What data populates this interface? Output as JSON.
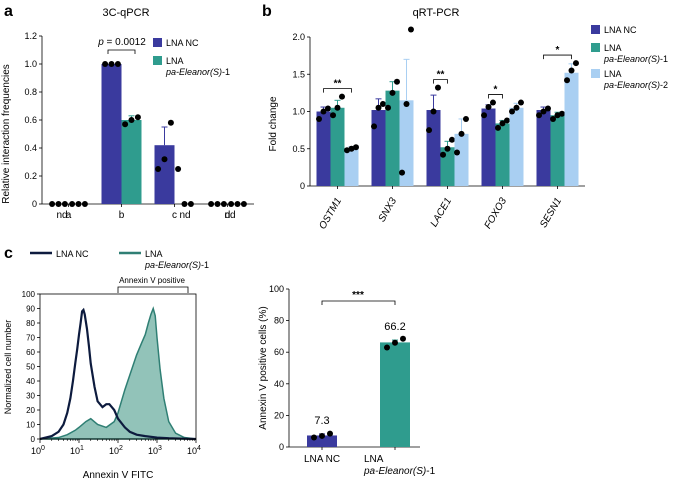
{
  "colors": {
    "nc": "#3a3a9e",
    "s1": "#2f9c8e",
    "s2": "#a9cff2",
    "flow_nc_line": "#0d1b3e",
    "flow_s1_fill": "#7fb8ad",
    "flow_s1_line": "#2f7f74"
  },
  "panels": {
    "a": {
      "letter": "a"
    },
    "b": {
      "letter": "b"
    },
    "c": {
      "letter": "c"
    }
  },
  "chart_data": [
    {
      "id": "a",
      "type": "bar",
      "title": "3C-qPCR",
      "ylabel": "Relative interaction frequencies",
      "xlabel": "",
      "ylim": [
        0,
        1.2
      ],
      "yticks": [
        "0",
        "0.2",
        "0.4",
        "0.6",
        "0.8",
        "1.0",
        "1.2"
      ],
      "categories": [
        "a",
        "b",
        "c",
        "d"
      ],
      "legend": [
        "LNA NC",
        "LNA pa-Eleanor(S)-1"
      ],
      "legend_line1": "LNA NC",
      "legend_line2_prefix": "LNA",
      "legend_line2_italic": "pa-Eleanor(S)",
      "legend_line2_suffix": "-1",
      "series": [
        {
          "name": "LNA NC",
          "values": [
            0,
            1.0,
            0.42,
            0
          ],
          "err": [
            0,
            0,
            0.13,
            0
          ],
          "points": [
            [
              0,
              0,
              0
            ],
            [
              1.0,
              1.0,
              1.0
            ],
            [
              0.25,
              0.32,
              0.58
            ],
            [
              0,
              0,
              0
            ]
          ]
        },
        {
          "name": "LNA pa-Eleanor(S)-1",
          "values": [
            0,
            0.6,
            0,
            0
          ],
          "err": [
            0,
            0.03,
            0,
            0
          ],
          "points": [
            [
              0,
              0,
              0
            ],
            [
              0.57,
              0.6,
              0.62
            ],
            [
              0.25,
              0,
              0
            ],
            [
              0,
              0,
              0
            ]
          ]
        }
      ],
      "annotations": {
        "nd": "nd",
        "p_label": "p",
        "p_value": " = 0.0012"
      }
    },
    {
      "id": "b",
      "type": "bar",
      "title": "qRT-PCR",
      "ylabel": "Fold change",
      "xlabel": "",
      "ylim": [
        0,
        2.0
      ],
      "yticks": [
        "0",
        "0.5",
        "1.0",
        "1.5",
        "2.0"
      ],
      "categories": [
        "OSTM1",
        "SNX3",
        "LACE1",
        "FOXO3",
        "SESN1"
      ],
      "legend": [
        "LNA NC",
        "LNA pa-Eleanor(S)-1",
        "LNA pa-Eleanor(S)-2"
      ],
      "legend_prefix": "LNA",
      "legend_italic": "pa-Eleanor(S)",
      "legend_suffix1": "-1",
      "legend_suffix2": "-2",
      "series": [
        {
          "name": "LNA NC",
          "values": [
            1.0,
            1.02,
            1.02,
            1.04,
            1.02
          ],
          "err": [
            0.06,
            0.15,
            0.2,
            0.05,
            0.04
          ],
          "points": [
            [
              0.9,
              1.0,
              1.04
            ],
            [
              0.8,
              1.05,
              1.1
            ],
            [
              0.75,
              1.0,
              1.32
            ],
            [
              0.95,
              1.06,
              1.12
            ],
            [
              0.95,
              1.0,
              1.04
            ]
          ]
        },
        {
          "name": "LNA pa-Eleanor(S)-1",
          "values": [
            1.05,
            1.28,
            0.52,
            0.84,
            0.95
          ],
          "err": [
            0.1,
            0.12,
            0.08,
            0.04,
            0.04
          ],
          "points": [
            [
              0.95,
              1.05,
              1.2
            ],
            [
              1.05,
              1.25,
              1.4
            ],
            [
              0.42,
              0.5,
              0.62
            ],
            [
              0.78,
              0.84,
              0.88
            ],
            [
              0.9,
              0.95,
              0.97
            ]
          ]
        },
        {
          "name": "LNA pa-Eleanor(S)-2",
          "values": [
            0.5,
            1.15,
            0.7,
            1.05,
            1.52
          ],
          "err": [
            0.03,
            0.55,
            0.2,
            0.06,
            0.12
          ],
          "points": [
            [
              0.48,
              0.5,
              0.52
            ],
            [
              0.18,
              1.1,
              2.1
            ],
            [
              0.45,
              0.7,
              0.9
            ],
            [
              1.0,
              1.05,
              1.12
            ],
            [
              1.42,
              1.55,
              1.65
            ]
          ]
        }
      ],
      "significance": [
        "**",
        "",
        "**",
        "*",
        "*"
      ]
    },
    {
      "id": "c-flow",
      "type": "area",
      "title": "",
      "ylabel": "Normalized cell number",
      "xlabel": "Annexin V FITC",
      "xscale": "log",
      "xlim": [
        1,
        10000
      ],
      "ylim": [
        0,
        100
      ],
      "yticks": [
        "0",
        "10",
        "20",
        "30",
        "40",
        "50",
        "60",
        "70",
        "80",
        "90",
        "100"
      ],
      "xtick_base": "10",
      "xtick_exps": [
        "0",
        "1",
        "2",
        "3",
        "4"
      ],
      "gate_label": "Annexin V positive",
      "gate_range": [
        80,
        7000
      ],
      "legend_nc": "LNA NC",
      "legend_s1_prefix": "LNA",
      "legend_s1_italic": "pa-Eleanor(S)",
      "legend_s1_suffix": "-1",
      "series": [
        {
          "name": "LNA NC",
          "style": "line",
          "x": [
            1,
            2,
            3,
            4,
            5,
            6,
            7,
            8,
            9,
            10,
            11,
            12,
            13,
            14,
            16,
            18,
            20,
            25,
            30,
            40,
            50,
            60,
            80,
            100,
            150,
            200,
            300,
            500,
            1000,
            2000,
            5000,
            10000
          ],
          "y": [
            0,
            2,
            5,
            10,
            18,
            28,
            40,
            52,
            62,
            72,
            80,
            88,
            89,
            86,
            76,
            64,
            52,
            36,
            26,
            22,
            24,
            24,
            20,
            14,
            8,
            5,
            3,
            2,
            1,
            0.5,
            0.2,
            0
          ]
        },
        {
          "name": "LNA pa-Eleanor(S)-1",
          "style": "fill",
          "x": [
            1,
            3,
            5,
            8,
            10,
            15,
            20,
            30,
            50,
            80,
            100,
            150,
            200,
            300,
            400,
            500,
            600,
            700,
            800,
            900,
            1000,
            1200,
            1500,
            2000,
            3000,
            5000,
            10000
          ],
          "y": [
            0,
            1,
            3,
            6,
            8,
            12,
            14,
            10,
            8,
            12,
            18,
            34,
            44,
            58,
            66,
            72,
            80,
            86,
            90,
            85,
            70,
            48,
            28,
            12,
            4,
            1,
            0
          ]
        }
      ]
    },
    {
      "id": "c-bar",
      "type": "bar",
      "title": "",
      "ylabel": "Annexin V positive cells (%)",
      "xlabel": "",
      "ylim": [
        0,
        100
      ],
      "yticks": [
        "0",
        "20",
        "40",
        "60",
        "80",
        "100"
      ],
      "categories": [
        "LNA NC",
        "LNA pa-Eleanor(S)-1"
      ],
      "cat1": "LNA NC",
      "cat2_prefix": "LNA",
      "cat2_italic": "pa-Eleanor(S)",
      "cat2_suffix": "-1",
      "values": [
        7.3,
        66.2
      ],
      "labels": [
        "7.3",
        "66.2"
      ],
      "err": [
        1.0,
        1.5
      ],
      "points": [
        [
          6.0,
          7.0,
          8.5
        ],
        [
          63.0,
          66.0,
          68.5
        ]
      ],
      "significance": "***"
    }
  ]
}
